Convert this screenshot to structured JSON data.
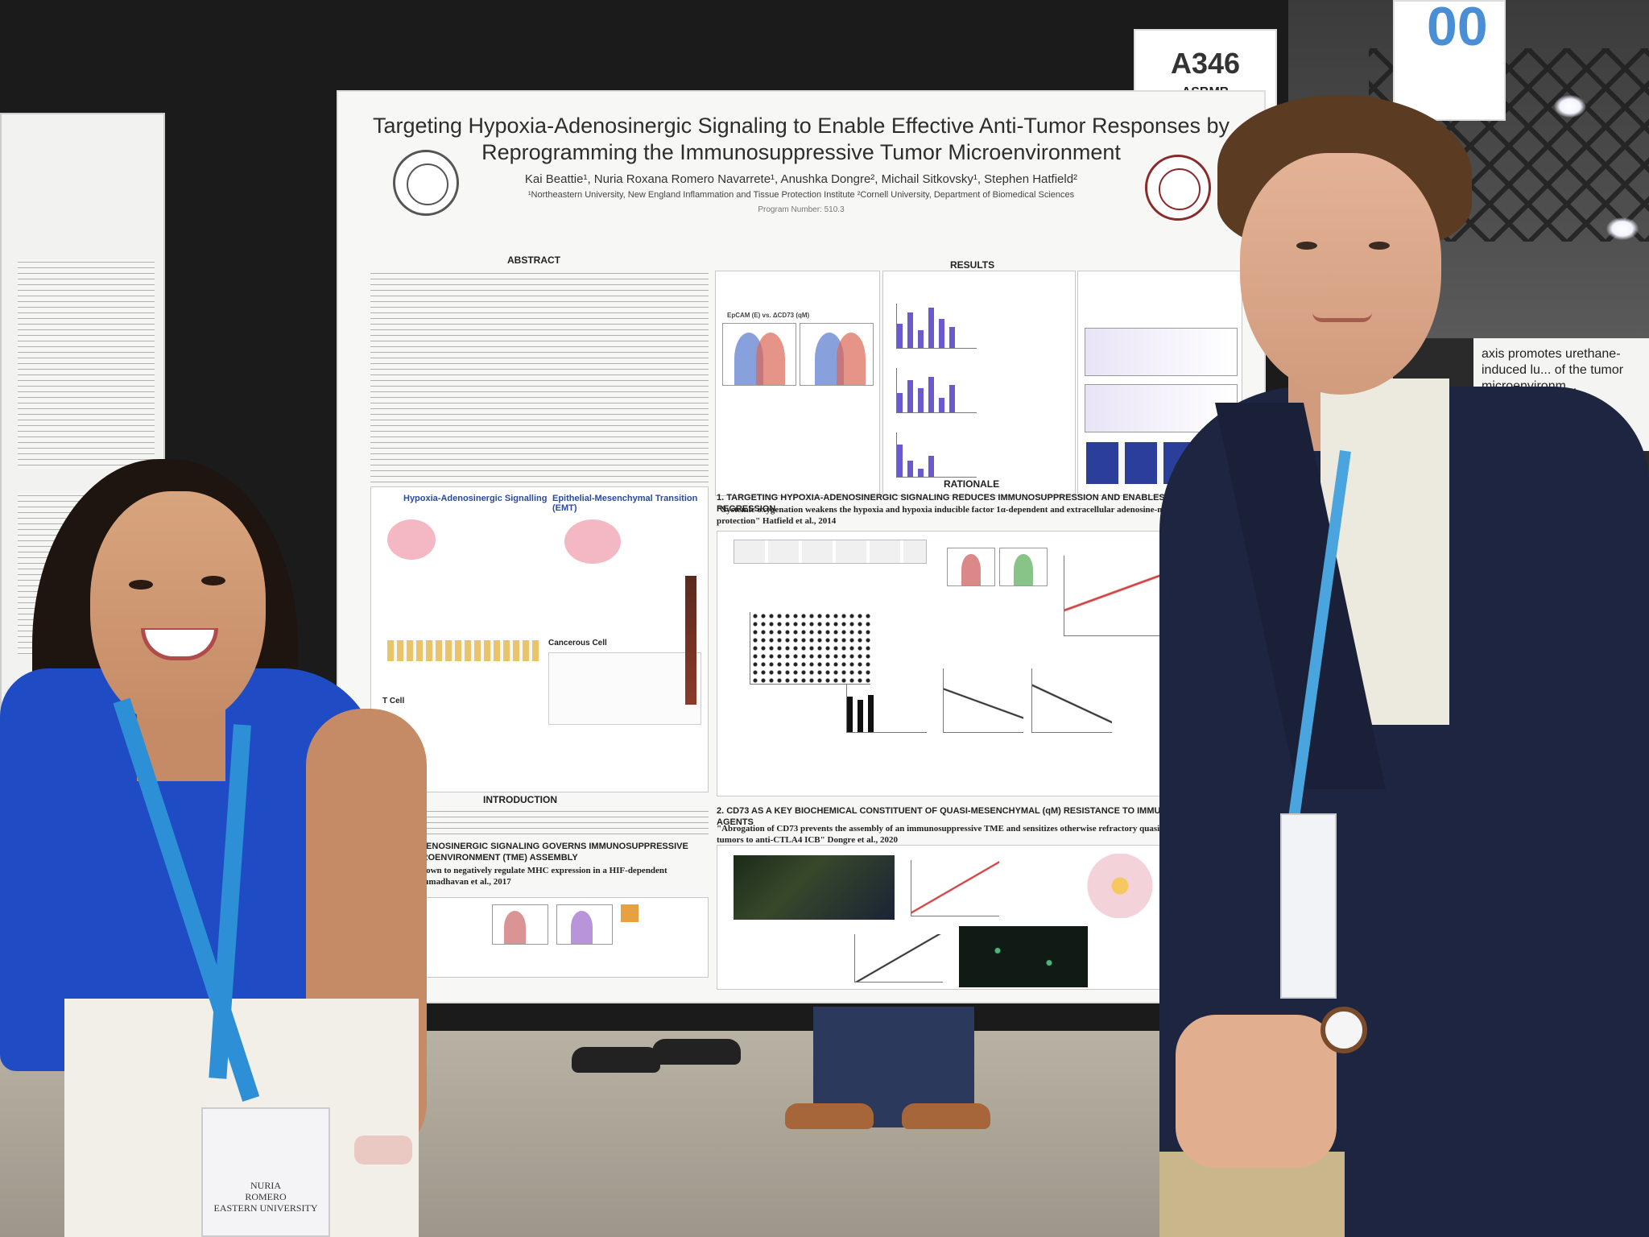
{
  "poster": {
    "title": "Targeting Hypoxia-Adenosinergic Signaling to Enable Effective Anti-Tumor Responses by Reprogramming the Immunosuppressive Tumor Microenvironment",
    "authors": "Kai Beattie¹, Nuria Roxana Romero Navarrete¹, Anushka Dongre², Michail Sitkovsky¹, Stephen Hatfield²",
    "affiliations": "¹Northeastern University, New England Inflammation and Tissue Protection Institute ²Cornell University, Department of Biomedical Sciences",
    "program_number": "Program Number: 510.3",
    "sections": {
      "abstract": "ABSTRACT",
      "results": "RESULTS",
      "rationale": "RATIONALE",
      "introduction": "INTRODUCTION"
    },
    "figure_labels": {
      "hypoxia_signalling": "Hypoxia-Adenosinergic Signalling",
      "emt": "Epithelial-Mesenchymal Transition (EMT)",
      "cancerous_cell": "Cancerous Cell",
      "t_cell": "T Cell",
      "ecd73": "EpCAM (E) vs. ΔCD73 (qM)"
    },
    "rationale_heading_1": "1. TARGETING HYPOXIA-ADENOSINERGIC SIGNALING REDUCES IMMUNOSUPPRESSION AND ENABLES TUMOR REGRESSION",
    "rationale_quote_1": "\"Systemic oxygenation weakens the hypoxia and hypoxia inducible factor 1α-dependent and extracellular adenosine-mediated tumor protection\" Hatfield et al., 2014",
    "rationale_heading_2": "2. CD73 AS A KEY BIOCHEMICAL CONSTITUENT OF QUASI-MESENCHYMAL (qM) RESISTANCE TO IMMUNOMODULATORY AGENTS",
    "rationale_quote_2": "\"Abrogation of CD73 prevents the assembly of an immunosuppressive TME and sensitizes otherwise refractory quasi-mesenchymal tumors to anti-CTLA4 ICB\" Dongre et al., 2020",
    "intro_heading": "HYPOXIA-ADENOSINERGIC SIGNALING GOVERNS IMMUNOSUPPRESSIVE TUMOR MICROENVIRONMENT (TME) ASSEMBLY",
    "intro_quote": "\"Hypoxia is shown to negatively regulate MHC expression in a HIF-dependent manner\" Sethumadhavan et al., 2017"
  },
  "board_card": {
    "number": "A346",
    "org": "ASBMB"
  },
  "aisle_sign": "00",
  "neighbor_poster": "axis promotes urethane-induced lu... of the tumor microenvironm...",
  "badge": {
    "line1": "NURIA",
    "line2": "ROMERO",
    "line3": "EASTERN UNIVERSITY"
  }
}
